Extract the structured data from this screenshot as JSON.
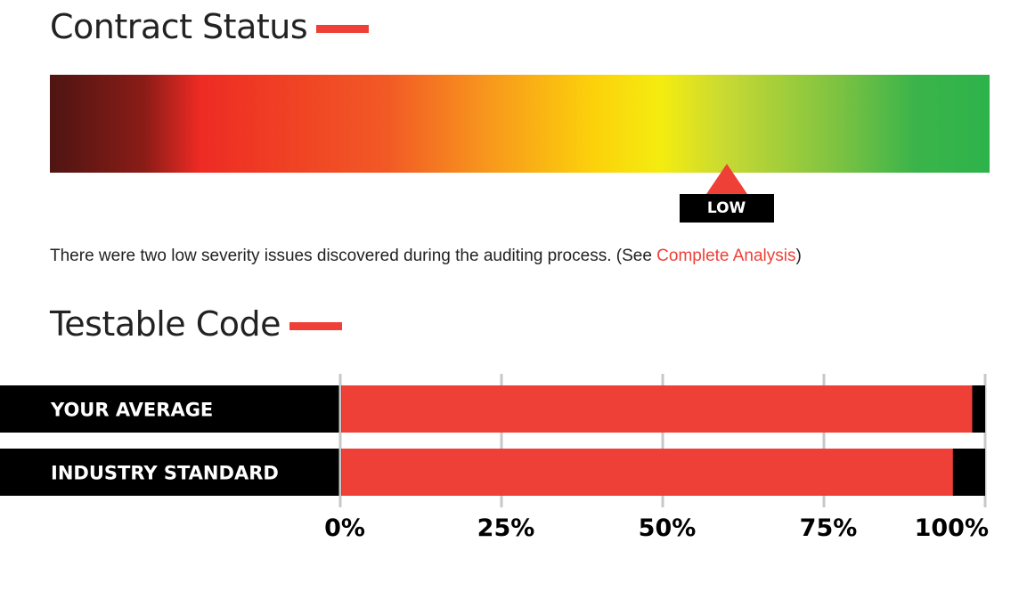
{
  "contract_status": {
    "title": "Contract Status",
    "gauge_level": 0.72,
    "level_label": "LOW",
    "summary_text": "There were two low severity issues discovered during the auditing process. (See ",
    "link_label": "Complete Analysis",
    "summary_suffix": ")",
    "colors": {
      "accent": "#ef4038"
    }
  },
  "testable_code": {
    "title": "Testable Code"
  },
  "chart_data": {
    "type": "bar",
    "orientation": "horizontal",
    "categories": [
      "YOUR AVERAGE",
      "INDUSTRY STANDARD"
    ],
    "values": [
      98,
      95
    ],
    "xlim": [
      0,
      100
    ],
    "ticks": [
      "0%",
      "25%",
      "50%",
      "75%",
      "100%"
    ],
    "tick_values": [
      0,
      25,
      50,
      75,
      100
    ],
    "title": "",
    "xlabel": "",
    "ylabel": "",
    "grid": true,
    "colors": {
      "bar": "#ef4038",
      "track": "#000000",
      "grid": "#c8c8c8"
    }
  }
}
